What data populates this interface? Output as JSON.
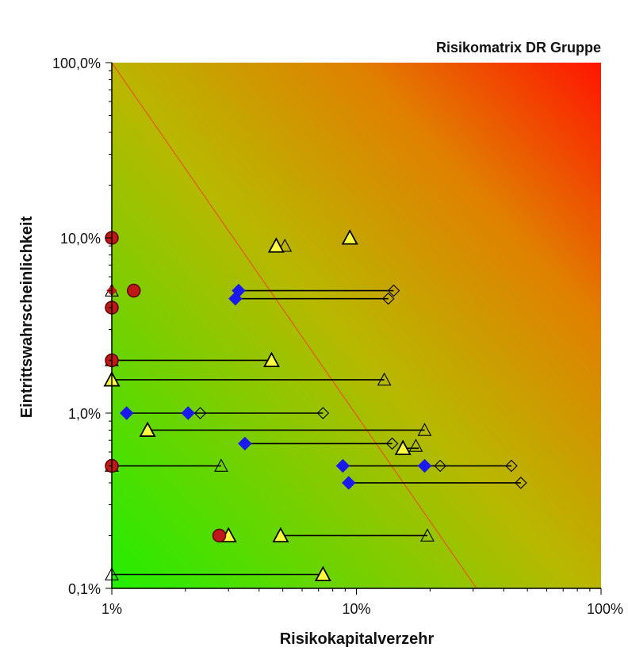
{
  "chart_data": {
    "type": "scatter",
    "title": "Risikomatrix DR Gruppe",
    "xlabel": "Risikokapitalverzehr",
    "ylabel": "Eintrittswahrscheinlichkeit",
    "x_scale": "log",
    "y_scale": "log",
    "xlim": [
      1,
      100
    ],
    "ylim": [
      0.1,
      100
    ],
    "x_ticks": [
      {
        "value": 1,
        "label": "1%"
      },
      {
        "value": 10,
        "label": "10%"
      },
      {
        "value": 100,
        "label": "100%"
      }
    ],
    "y_ticks": [
      {
        "value": 0.1,
        "label": "0,1%"
      },
      {
        "value": 1,
        "label": "1,0%"
      },
      {
        "value": 10,
        "label": "10,0%"
      },
      {
        "value": 100,
        "label": "100,0%"
      }
    ],
    "grid": false,
    "background": "green-to-red gradient (low risk bottom-left, high risk top-right)",
    "colors": {
      "low_risk": "#22ee00",
      "high_risk": "#ff1500",
      "threshold_line": "#e06010",
      "diamond": "#1a1aee",
      "circle": "#c01818",
      "triangle": "#ffff40",
      "connector": "#000000"
    },
    "threshold_line": {
      "from": [
        1,
        100
      ],
      "to": [
        31,
        0.1
      ]
    },
    "ranges": [
      {
        "x1": 3.3,
        "x2": 14.2,
        "y": 5.0
      },
      {
        "x1": 3.2,
        "x2": 13.5,
        "y": 4.5
      },
      {
        "x1": 1.0,
        "x2": 4.5,
        "y": 2.0
      },
      {
        "x1": 1.0,
        "x2": 13.0,
        "y": 1.55
      },
      {
        "x1": 1.15,
        "x2": 7.3,
        "y": 1.0
      },
      {
        "x1": 1.4,
        "x2": 19.0,
        "y": 0.8
      },
      {
        "x1": 3.5,
        "x2": 14.0,
        "y": 0.67
      },
      {
        "x1": 15.5,
        "x2": 18.0,
        "y": 0.63
      },
      {
        "x1": 8.8,
        "x2": 43.0,
        "y": 0.5
      },
      {
        "x1": 1.0,
        "x2": 2.8,
        "y": 0.5
      },
      {
        "x1": 9.3,
        "x2": 47.0,
        "y": 0.4
      },
      {
        "x1": 4.9,
        "x2": 19.5,
        "y": 0.2
      },
      {
        "x1": 1.0,
        "x2": 7.3,
        "y": 0.12
      }
    ],
    "series": [
      {
        "marker": "triangle",
        "filled": true,
        "points": [
          {
            "x": 4.7,
            "y": 9.0
          },
          {
            "x": 9.4,
            "y": 10.0
          },
          {
            "x": 4.5,
            "y": 2.0
          },
          {
            "x": 1.0,
            "y": 1.55
          },
          {
            "x": 1.4,
            "y": 0.8
          },
          {
            "x": 15.5,
            "y": 0.63
          },
          {
            "x": 3.0,
            "y": 0.2
          },
          {
            "x": 4.9,
            "y": 0.2
          },
          {
            "x": 7.3,
            "y": 0.12
          }
        ]
      },
      {
        "marker": "triangle",
        "filled": false,
        "points": [
          {
            "x": 5.1,
            "y": 9.0
          },
          {
            "x": 13.0,
            "y": 1.55
          },
          {
            "x": 19.0,
            "y": 0.8
          },
          {
            "x": 17.5,
            "y": 0.65
          },
          {
            "x": 2.8,
            "y": 0.5
          },
          {
            "x": 1.0,
            "y": 0.5
          },
          {
            "x": 19.5,
            "y": 0.2
          },
          {
            "x": 1.0,
            "y": 0.12
          },
          {
            "x": 1.0,
            "y": 2.0
          },
          {
            "x": 1.0,
            "y": 5.0
          }
        ]
      },
      {
        "marker": "diamond",
        "filled": true,
        "points": [
          {
            "x": 3.3,
            "y": 5.0
          },
          {
            "x": 3.2,
            "y": 4.5
          },
          {
            "x": 1.15,
            "y": 1.0
          },
          {
            "x": 2.05,
            "y": 1.0
          },
          {
            "x": 3.5,
            "y": 0.67
          },
          {
            "x": 8.8,
            "y": 0.5
          },
          {
            "x": 19.0,
            "y": 0.5
          },
          {
            "x": 9.3,
            "y": 0.4
          }
        ]
      },
      {
        "marker": "diamond",
        "filled": false,
        "points": [
          {
            "x": 14.2,
            "y": 5.0
          },
          {
            "x": 13.5,
            "y": 4.5
          },
          {
            "x": 2.3,
            "y": 1.0
          },
          {
            "x": 7.3,
            "y": 1.0
          },
          {
            "x": 14.0,
            "y": 0.67
          },
          {
            "x": 22.0,
            "y": 0.5
          },
          {
            "x": 43.0,
            "y": 0.5
          },
          {
            "x": 47.0,
            "y": 0.4
          }
        ]
      },
      {
        "marker": "circle",
        "filled": true,
        "points": [
          {
            "x": 1.0,
            "y": 10.0
          },
          {
            "x": 1.23,
            "y": 5.0
          },
          {
            "x": 1.0,
            "y": 4.0
          },
          {
            "x": 1.0,
            "y": 2.0
          },
          {
            "x": 1.0,
            "y": 0.5
          },
          {
            "x": 2.75,
            "y": 0.2
          }
        ]
      },
      {
        "marker": "diamond-small",
        "filled": true,
        "color": "#c01818",
        "points": [
          {
            "x": 1.0,
            "y": 5.0
          }
        ]
      }
    ]
  }
}
